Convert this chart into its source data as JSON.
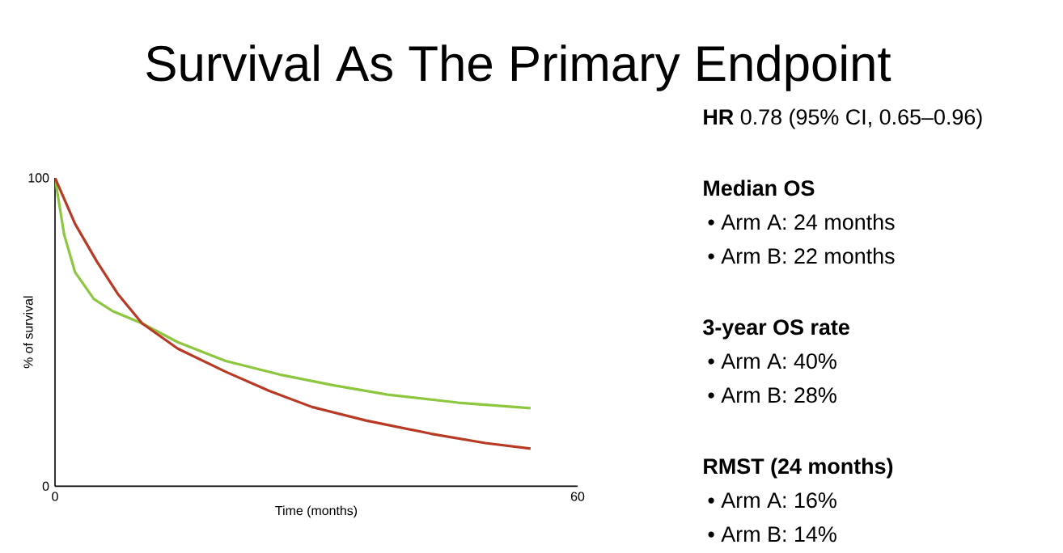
{
  "chart_data": {
    "type": "line",
    "title": "Survival As The Primary Endpoint",
    "xlabel": "Time (months)",
    "ylabel": "% of survival",
    "xlim": [
      0,
      60
    ],
    "ylim": [
      0,
      100
    ],
    "xticks": [
      0,
      60
    ],
    "yticks": [
      0,
      100
    ],
    "grid": false,
    "series": [
      {
        "color": "#8dc63f",
        "x": [
          0,
          1.05,
          2.3,
          4.46,
          6.6,
          10,
          14.1,
          19.6,
          25.8,
          32,
          38.2,
          46.3,
          54.6
        ],
        "values": [
          100,
          81.6,
          69.4,
          60.7,
          56.8,
          52.8,
          46.7,
          40.6,
          36.2,
          32.7,
          29.7,
          27.1,
          25.3
        ]
      },
      {
        "color": "#b83a25",
        "x": [
          0,
          2.3,
          4.8,
          7.2,
          10,
          14.1,
          19.6,
          24.6,
          29.5,
          35.7,
          43.2,
          49.4,
          54.6
        ],
        "values": [
          100,
          85.1,
          72.9,
          62.4,
          52.8,
          44.6,
          37.1,
          30.9,
          25.7,
          21.3,
          17,
          14,
          12.2
        ]
      }
    ],
    "annotations": [
      "**HR**   0.78 (95% CI, 0.65–0.96)",
      "Median OS",
      "• Arm A: 24 months",
      "• Arm B: 22 months",
      "3-year OS rate",
      "• Arm A: 40%",
      "• Arm B: 28%",
      "RMST (24 months)",
      "• Arm A: 16%",
      "• Arm B: 14%"
    ]
  }
}
